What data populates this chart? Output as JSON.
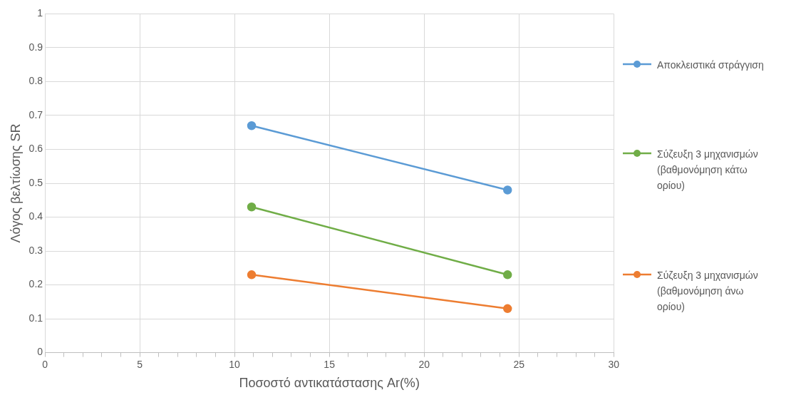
{
  "chart_data": {
    "type": "line",
    "xlabel": "Ποσοστό αντικατάστασης Ar(%)",
    "ylabel": "Λόγος βελτίωσης SR",
    "xlim": [
      0,
      30
    ],
    "xticks": [
      0,
      {
        "value": 1,
        "label": null
      },
      {
        "value": 2,
        "label": null
      },
      {
        "value": 3,
        "label": null
      },
      {
        "value": 4,
        "label": null
      },
      5,
      {
        "value": 6,
        "label": null
      },
      {
        "value": 7,
        "label": null
      },
      {
        "value": 8,
        "label": null
      },
      {
        "value": 9,
        "label": null
      },
      10,
      {
        "value": 11,
        "label": null
      },
      {
        "value": 12,
        "label": null
      },
      {
        "value": 13,
        "label": null
      },
      {
        "value": 14,
        "label": null
      },
      15,
      {
        "value": 16,
        "label": null
      },
      {
        "value": 17,
        "label": null
      },
      {
        "value": 18,
        "label": null
      },
      {
        "value": 19,
        "label": null
      },
      20,
      {
        "value": 21,
        "label": null
      },
      {
        "value": 22,
        "label": null
      },
      {
        "value": 23,
        "label": null
      },
      {
        "value": 24,
        "label": null
      },
      25,
      {
        "value": 26,
        "label": null
      },
      {
        "value": 27,
        "label": null
      },
      {
        "value": 28,
        "label": null
      },
      {
        "value": 29,
        "label": null
      },
      30
    ],
    "ylim": [
      0,
      1
    ],
    "yticks": [
      0,
      0.1,
      0.2,
      0.3,
      0.4,
      0.5,
      0.6,
      0.7,
      0.8,
      0.9,
      1
    ],
    "x": [
      10.9,
      24.4
    ],
    "grid": true,
    "legend": "right",
    "marker": "circle",
    "line_style": "solid",
    "series": [
      {
        "name": "Αποκλειστικά στράγγιση",
        "color": "#5b9bd5",
        "values": [
          0.67,
          0.48
        ]
      },
      {
        "name": "Σύζευξη 3 μηχανισμών (βαθμονόμηση κάτω ορίου)",
        "color": "#70ad47",
        "values": [
          0.43,
          0.23
        ]
      },
      {
        "name": "Σύζευξη 3 μηχανισμών (βαθμονόμηση άνω ορίου)",
        "color": "#ed7d31",
        "values": [
          0.23,
          0.13
        ]
      }
    ]
  }
}
